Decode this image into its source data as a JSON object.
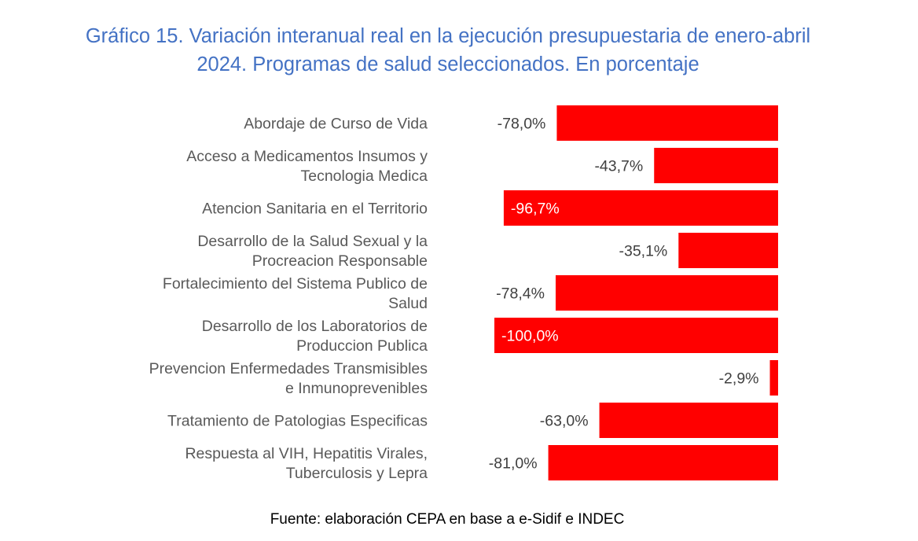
{
  "title": {
    "line1": "Gráfico 15. Variación interanual real en la ejecución presupuestaria de enero-abril",
    "line2": "2024. Programas de salud seleccionados. En porcentaje"
  },
  "source": "Fuente: elaboración CEPA en base a e-Sidif e INDEC",
  "colors": {
    "title": "#4472c4",
    "bar": "#ff0000",
    "category_text": "#595959",
    "label_outside": "#404040",
    "label_inside": "#ffffff"
  },
  "chart_data": {
    "type": "bar",
    "orientation": "horizontal",
    "xlim": [
      -100,
      0
    ],
    "categories": [
      [
        "Abordaje de Curso de Vida"
      ],
      [
        "Acceso a Medicamentos Insumos y",
        "Tecnologia Medica"
      ],
      [
        "Atencion Sanitaria en el Territorio"
      ],
      [
        "Desarrollo de la Salud Sexual y la",
        "Procreacion Responsable"
      ],
      [
        "Fortalecimiento del Sistema Publico de",
        "Salud"
      ],
      [
        "Desarrollo de los Laboratorios de",
        "Produccion Publica"
      ],
      [
        "Prevencion Enfermedades Transmisibles",
        "e Inmunoprevenibles"
      ],
      [
        "Tratamiento de Patologias Especificas"
      ],
      [
        "Respuesta al VIH, Hepatitis Virales,",
        "Tuberculosis y Lepra"
      ]
    ],
    "values": [
      -78.0,
      -43.7,
      -96.7,
      -35.1,
      -78.4,
      -100.0,
      -2.9,
      -63.0,
      -81.0
    ],
    "data_labels": [
      "-78,0%",
      "-43,7%",
      "-96,7%",
      "-35,1%",
      "-78,4%",
      "-100,0%",
      "-2,9%",
      "-63,0%",
      "-81,0%"
    ],
    "label_inside": [
      false,
      false,
      true,
      false,
      false,
      true,
      false,
      false,
      false
    ]
  }
}
